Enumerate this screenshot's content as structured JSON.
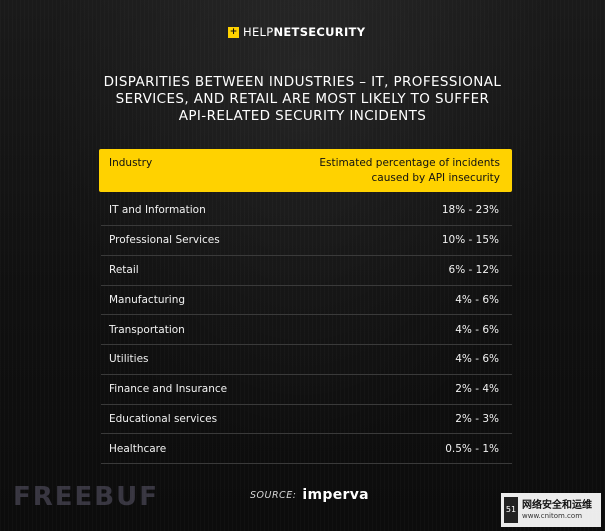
{
  "brand": {
    "mark": "+",
    "name_light": "HELP",
    "name_bold": "NETSECURITY"
  },
  "title": {
    "line1": "DISPARITIES BETWEEN INDUSTRIES – IT, PROFESSIONAL",
    "line2": "SERVICES, AND RETAIL ARE MOST LIKELY TO SUFFER",
    "line3": "API-RELATED SECURITY INCIDENTS"
  },
  "table": {
    "header": {
      "col1": "Industry",
      "col2_line1": "Estimated percentage of incidents",
      "col2_line2": "caused by API insecurity"
    },
    "rows": [
      {
        "industry": "IT and Information",
        "percentage": "18% - 23%"
      },
      {
        "industry": "Professional Services",
        "percentage": "10% - 15%"
      },
      {
        "industry": "Retail",
        "percentage": "6% - 12%"
      },
      {
        "industry": "Manufacturing",
        "percentage": "4% - 6%"
      },
      {
        "industry": "Transportation",
        "percentage": "4% - 6%"
      },
      {
        "industry": "Utilities",
        "percentage": "4% - 6%"
      },
      {
        "industry": "Finance and Insurance",
        "percentage": "2% - 4%"
      },
      {
        "industry": "Educational services",
        "percentage": "2% - 3%"
      },
      {
        "industry": "Healthcare",
        "percentage": "0.5% - 1%"
      }
    ]
  },
  "source": {
    "label": "SOURCE:",
    "logo": "imperva"
  },
  "watermarks": {
    "left": "FREEBUF",
    "right_mark": "51",
    "right_cn": "网络安全和运维",
    "right_url": "www.cnitom.com"
  },
  "colors": {
    "accent": "#ffd200",
    "background": "#0e0e0e",
    "divider": "#3a3a3a"
  }
}
